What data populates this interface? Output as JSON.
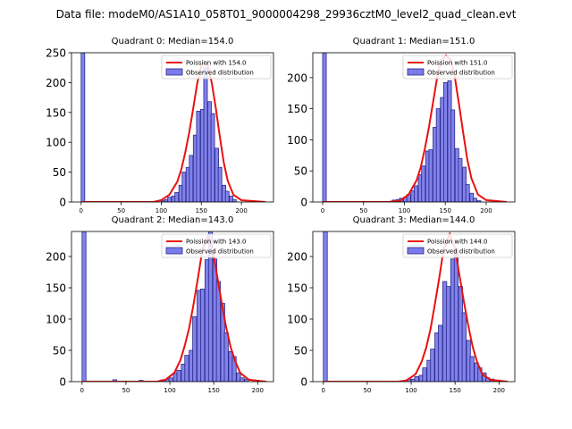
{
  "figure_title": "Data file: modeM0/AS1A10_058T01_9000004298_29936cztM0_level2_quad_clean.evt",
  "colors": {
    "bar_fill": "#7b7bea",
    "bar_edge": "#2a2a8c",
    "poisson_line": "#e8110f",
    "axis": "#000000"
  },
  "chart_data": [
    {
      "type": "bar",
      "title": "Quadrant 0: Median=154.0",
      "median": 154.0,
      "legend": {
        "position": "top-right",
        "poisson_label": "Poission with 154.0",
        "observed_label": "Observed distribution"
      },
      "xlim": [
        -12,
        240
      ],
      "ylim": [
        0,
        250
      ],
      "xticks": [
        0,
        50,
        100,
        150,
        200
      ],
      "yticks": [
        0,
        50,
        100,
        150,
        200,
        250
      ],
      "bin_width": 4.5,
      "bins": [
        [
          0,
          250
        ],
        [
          100,
          2
        ],
        [
          104,
          4
        ],
        [
          108,
          8
        ],
        [
          113,
          10
        ],
        [
          117,
          16
        ],
        [
          122,
          28
        ],
        [
          126,
          50
        ],
        [
          131,
          58
        ],
        [
          135,
          78
        ],
        [
          140,
          112
        ],
        [
          144,
          152
        ],
        [
          149,
          155
        ],
        [
          153,
          225
        ],
        [
          158,
          168
        ],
        [
          162,
          148
        ],
        [
          167,
          90
        ],
        [
          171,
          58
        ],
        [
          176,
          28
        ],
        [
          180,
          18
        ],
        [
          185,
          10
        ],
        [
          189,
          4
        ]
      ],
      "poisson_x": [
        0,
        90,
        100,
        110,
        120,
        125,
        130,
        135,
        140,
        145,
        150,
        154,
        158,
        163,
        168,
        173,
        178,
        183,
        190,
        200,
        230
      ],
      "poisson_y": [
        0,
        0,
        3,
        12,
        34,
        55,
        83,
        117,
        158,
        200,
        228,
        235,
        228,
        200,
        158,
        110,
        66,
        35,
        12,
        3,
        0
      ]
    },
    {
      "type": "bar",
      "title": "Quadrant 1: Median=151.0",
      "median": 151.0,
      "legend": {
        "position": "top-right",
        "poisson_label": "Poission with 151.0",
        "observed_label": "Observed distribution"
      },
      "xlim": [
        -12,
        235
      ],
      "ylim": [
        0,
        240
      ],
      "xticks": [
        0,
        50,
        100,
        150,
        200
      ],
      "yticks": [
        0,
        50,
        100,
        150,
        200
      ],
      "bin_width": 4.5,
      "bins": [
        [
          0,
          240
        ],
        [
          85,
          3
        ],
        [
          90,
          4
        ],
        [
          94,
          6
        ],
        [
          99,
          8
        ],
        [
          103,
          12
        ],
        [
          108,
          18
        ],
        [
          112,
          26
        ],
        [
          117,
          44
        ],
        [
          121,
          58
        ],
        [
          126,
          82
        ],
        [
          130,
          84
        ],
        [
          135,
          120
        ],
        [
          139,
          150
        ],
        [
          144,
          168
        ],
        [
          148,
          192
        ],
        [
          153,
          195
        ],
        [
          157,
          148
        ],
        [
          162,
          86
        ],
        [
          166,
          70
        ],
        [
          171,
          56
        ],
        [
          175,
          28
        ],
        [
          180,
          14
        ],
        [
          184,
          6
        ],
        [
          189,
          2
        ]
      ],
      "poisson_x": [
        0,
        80,
        95,
        105,
        115,
        120,
        125,
        130,
        135,
        140,
        145,
        151,
        157,
        162,
        167,
        172,
        177,
        182,
        190,
        200,
        225
      ],
      "poisson_y": [
        0,
        0,
        2,
        12,
        35,
        56,
        86,
        120,
        160,
        200,
        228,
        236,
        228,
        198,
        155,
        110,
        68,
        38,
        12,
        3,
        0
      ]
    },
    {
      "type": "bar",
      "title": "Quadrant 2: Median=143.0",
      "median": 143.0,
      "legend": {
        "position": "top-right",
        "poisson_label": "Poission with 143.0",
        "observed_label": "Observed distribution"
      },
      "xlim": [
        -12,
        218
      ],
      "ylim": [
        0,
        240
      ],
      "xticks": [
        0,
        50,
        100,
        150,
        200
      ],
      "yticks": [
        0,
        50,
        100,
        150,
        200
      ],
      "bin_width": 4.5,
      "bins": [
        [
          0,
          240
        ],
        [
          35,
          3
        ],
        [
          65,
          2
        ],
        [
          90,
          3
        ],
        [
          95,
          4
        ],
        [
          99,
          6
        ],
        [
          104,
          14
        ],
        [
          108,
          18
        ],
        [
          113,
          28
        ],
        [
          117,
          42
        ],
        [
          122,
          50
        ],
        [
          126,
          104
        ],
        [
          131,
          146
        ],
        [
          135,
          148
        ],
        [
          140,
          195
        ],
        [
          144,
          252
        ],
        [
          149,
          196
        ],
        [
          153,
          160
        ],
        [
          158,
          125
        ],
        [
          162,
          78
        ],
        [
          167,
          48
        ],
        [
          171,
          40
        ],
        [
          176,
          14
        ],
        [
          180,
          6
        ],
        [
          185,
          4
        ]
      ],
      "poisson_x": [
        0,
        85,
        95,
        105,
        112,
        117,
        122,
        127,
        132,
        137,
        143,
        149,
        154,
        159,
        164,
        169,
        174,
        180,
        190,
        210
      ],
      "poisson_y": [
        0,
        0,
        3,
        14,
        34,
        58,
        86,
        124,
        166,
        210,
        232,
        208,
        168,
        126,
        88,
        56,
        34,
        14,
        3,
        0
      ]
    },
    {
      "type": "bar",
      "title": "Quadrant 3: Median=144.0",
      "median": 144.0,
      "legend": {
        "position": "top-right",
        "poisson_label": "Poission with 144.0",
        "observed_label": "Observed distribution"
      },
      "xlim": [
        -12,
        218
      ],
      "ylim": [
        0,
        240
      ],
      "xticks": [
        0,
        50,
        100,
        150,
        200
      ],
      "yticks": [
        0,
        50,
        100,
        150,
        200
      ],
      "bin_width": 4.5,
      "bins": [
        [
          0,
          240
        ],
        [
          95,
          4
        ],
        [
          100,
          4
        ],
        [
          104,
          8
        ],
        [
          109,
          10
        ],
        [
          113,
          22
        ],
        [
          118,
          34
        ],
        [
          122,
          52
        ],
        [
          127,
          78
        ],
        [
          131,
          90
        ],
        [
          136,
          160
        ],
        [
          140,
          152
        ],
        [
          145,
          196
        ],
        [
          149,
          210
        ],
        [
          154,
          152
        ],
        [
          158,
          110
        ],
        [
          163,
          66
        ],
        [
          167,
          40
        ],
        [
          172,
          30
        ],
        [
          176,
          22
        ],
        [
          181,
          14
        ],
        [
          185,
          6
        ],
        [
          190,
          4
        ]
      ],
      "poisson_x": [
        0,
        85,
        95,
        105,
        112,
        117,
        122,
        127,
        132,
        137,
        144,
        150,
        155,
        160,
        165,
        170,
        175,
        181,
        190,
        210
      ],
      "poisson_y": [
        0,
        0,
        2,
        12,
        32,
        54,
        84,
        124,
        166,
        212,
        236,
        212,
        170,
        128,
        90,
        56,
        32,
        12,
        3,
        0
      ]
    }
  ]
}
